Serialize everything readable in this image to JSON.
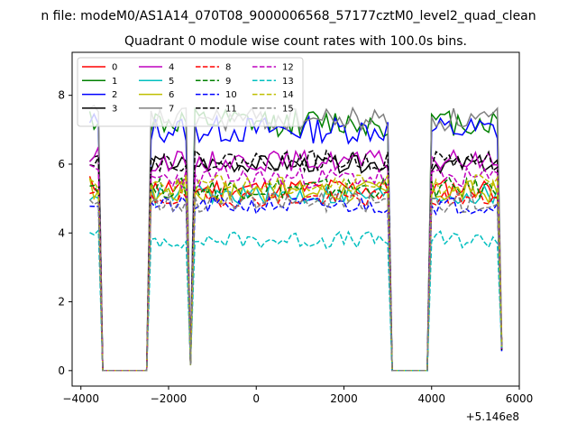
{
  "suptitle": "n file: modeM0/AS1A14_070T08_9000006568_57177cztM0_level2_quad_clean",
  "chart_data": {
    "type": "line",
    "title": "Quadrant 0 module wise count rates with 100.0s bins.",
    "xlabel": "",
    "ylabel": "",
    "x_offset_label": "+5.146e8",
    "xlim": [
      -4200,
      6000
    ],
    "ylim": [
      -0.45,
      9.25
    ],
    "xticks": [
      -4000,
      -2000,
      0,
      2000,
      4000,
      6000
    ],
    "xtick_labels": [
      "−4000",
      "−2000",
      "0",
      "2000",
      "4000",
      "6000"
    ],
    "yticks": [
      0,
      2,
      4,
      6,
      8
    ],
    "ytick_labels": [
      "0",
      "2",
      "4",
      "6",
      "8"
    ],
    "grid": false,
    "legend": {
      "location": "upper-left",
      "columns": 4
    },
    "segments": [
      {
        "x_start": -3800,
        "x_end": -3600,
        "step": 100
      },
      {
        "x_start": -3500,
        "x_end": -2500,
        "step": 100,
        "gap": true
      },
      {
        "x_start": -2400,
        "x_end": -1600,
        "step": 100
      },
      {
        "x_start": -1500,
        "x_end": -1500,
        "step": 100,
        "dip": true
      },
      {
        "x_start": -1400,
        "x_end": 3000,
        "step": 100
      },
      {
        "x_start": 3100,
        "x_end": 3900,
        "step": 100,
        "gap": true
      },
      {
        "x_start": 4000,
        "x_end": 5500,
        "step": 100
      }
    ],
    "series": [
      {
        "name": "0",
        "color": "#ff0000",
        "style": "solid",
        "level": 5.3,
        "noise": 0.3,
        "seed": 11
      },
      {
        "name": "1",
        "color": "#008000",
        "style": "solid",
        "level": 7.2,
        "noise": 0.4,
        "seed": 12
      },
      {
        "name": "2",
        "color": "#0000ff",
        "style": "solid",
        "level": 7.0,
        "noise": 0.4,
        "seed": 13
      },
      {
        "name": "3",
        "color": "#000000",
        "style": "solid",
        "level": 6.0,
        "noise": 0.25,
        "seed": 14
      },
      {
        "name": "4",
        "color": "#bf00bf",
        "style": "solid",
        "level": 6.1,
        "noise": 0.3,
        "seed": 15
      },
      {
        "name": "5",
        "color": "#00bfbf",
        "style": "solid",
        "level": 5.1,
        "noise": 0.3,
        "seed": 16
      },
      {
        "name": "6",
        "color": "#bfbf00",
        "style": "solid",
        "level": 5.2,
        "noise": 0.35,
        "seed": 17
      },
      {
        "name": "7",
        "color": "#808080",
        "style": "solid",
        "level": 7.3,
        "noise": 0.35,
        "seed": 18
      },
      {
        "name": "8",
        "color": "#ff0000",
        "style": "dashed",
        "level": 5.0,
        "noise": 0.25,
        "seed": 19
      },
      {
        "name": "9",
        "color": "#008000",
        "style": "dashed",
        "level": 5.3,
        "noise": 0.3,
        "seed": 20
      },
      {
        "name": "10",
        "color": "#0000ff",
        "style": "dashed",
        "level": 4.8,
        "noise": 0.25,
        "seed": 21
      },
      {
        "name": "11",
        "color": "#000000",
        "style": "dashed",
        "level": 6.1,
        "noise": 0.3,
        "seed": 22
      },
      {
        "name": "12",
        "color": "#bf00bf",
        "style": "dashed",
        "level": 5.6,
        "noise": 0.3,
        "seed": 23
      },
      {
        "name": "13",
        "color": "#00bfbf",
        "style": "dashed",
        "level": 3.8,
        "noise": 0.25,
        "seed": 24
      },
      {
        "name": "14",
        "color": "#bfbf00",
        "style": "dashed",
        "level": 5.4,
        "noise": 0.3,
        "seed": 25
      },
      {
        "name": "15",
        "color": "#808080",
        "style": "dashed",
        "level": 4.9,
        "noise": 0.3,
        "seed": 26
      }
    ]
  }
}
